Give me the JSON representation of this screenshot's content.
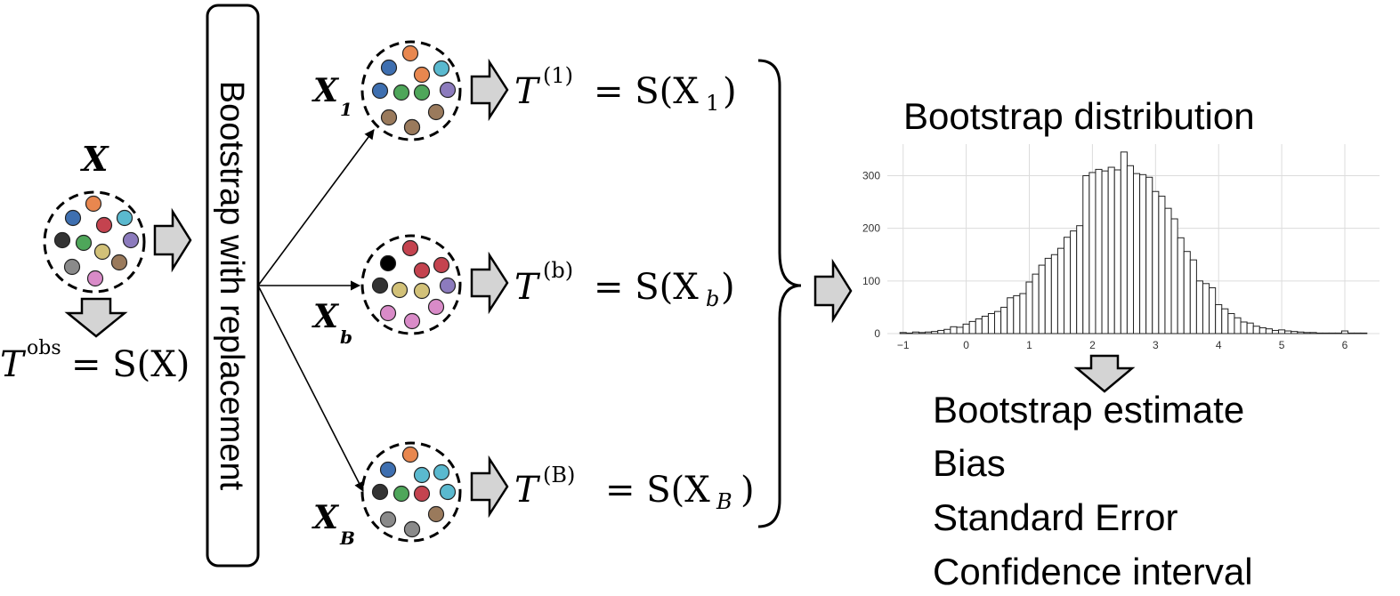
{
  "original": {
    "label": "X",
    "dots": [
      "#e8874f",
      "#3e6fb0",
      "#c4434f",
      "#5ab9cf",
      "#333333",
      "#4ea65a",
      "#d2c178",
      "#8c7bbd",
      "#8a8a8a",
      "#9a7a5c",
      "#d98bc8"
    ],
    "statistic": {
      "base": "T",
      "sup": "obs",
      "rhs": "= S(X)"
    }
  },
  "process_label": "Bootstrap with replacement",
  "resamples": [
    {
      "label": "X",
      "label_sub": "1",
      "dots": [
        "#e8874f",
        "#3e6fb0",
        "#e8874f",
        "#5ab9cf",
        "#3e6fb0",
        "#4ea65a",
        "#4ea65a",
        "#8c7bbd",
        "#9a7a5c",
        "#4ea65a",
        "#9a7a5c",
        "#9a7a5c"
      ],
      "statistic": {
        "base": "T",
        "sup": "(1)",
        "eq": "= S(X",
        "sub": "1",
        "close": ")"
      }
    },
    {
      "label": "X",
      "label_sub": "b",
      "dots": [
        "#c4434f",
        "#000000",
        "#c4434f",
        "#c4434f",
        "#333333",
        "#d2c178",
        "#d2c178",
        "#8c7bbd",
        "#d98bc8",
        "#d98bc8",
        "#d98bc8"
      ],
      "statistic": {
        "base": "T",
        "sup": "(b)",
        "eq": "= S(X",
        "sub": "b",
        "close": ")"
      }
    },
    {
      "label": "X",
      "label_sub": "B",
      "dots": [
        "#e8874f",
        "#3e6fb0",
        "#5ab9cf",
        "#5ab9cf",
        "#333333",
        "#4ea65a",
        "#c4434f",
        "#5ab9cf",
        "#8a8a8a",
        "#8a8a8a",
        "#9a7a5c",
        "#8a8a8a"
      ],
      "statistic": {
        "base": "T",
        "sup": "(B)",
        "eq": "= S(X",
        "sub": "B",
        "close": ")"
      }
    }
  ],
  "distribution_title": "Bootstrap distribution",
  "outputs": [
    "Bootstrap estimate",
    "Bias",
    "Standard Error",
    "Confidence interval"
  ],
  "chart_data": {
    "type": "bar",
    "title": "",
    "xlabel": "",
    "ylabel": "",
    "xlim": [
      -1.25,
      6.55
    ],
    "ylim": [
      0,
      360
    ],
    "xticks": [
      -1,
      0,
      1,
      2,
      3,
      4,
      5,
      6
    ],
    "yticks": [
      0,
      100,
      200,
      300
    ],
    "grid": true,
    "bin_width": 0.1,
    "x": [
      -1.0,
      -0.9,
      -0.8,
      -0.7,
      -0.6,
      -0.5,
      -0.4,
      -0.3,
      -0.2,
      -0.1,
      0.0,
      0.1,
      0.2,
      0.3,
      0.4,
      0.5,
      0.6,
      0.7,
      0.8,
      0.9,
      1.0,
      1.1,
      1.2,
      1.3,
      1.4,
      1.5,
      1.6,
      1.7,
      1.8,
      1.9,
      2.0,
      2.1,
      2.2,
      2.3,
      2.4,
      2.5,
      2.6,
      2.7,
      2.8,
      2.9,
      3.0,
      3.1,
      3.2,
      3.3,
      3.4,
      3.5,
      3.6,
      3.7,
      3.8,
      3.9,
      4.0,
      4.1,
      4.2,
      4.3,
      4.4,
      4.5,
      4.6,
      4.7,
      4.8,
      4.9,
      5.0,
      5.1,
      5.2,
      5.3,
      5.4,
      5.5,
      5.6,
      5.7,
      5.8,
      5.9,
      6.0,
      6.1,
      6.2,
      6.3
    ],
    "values": [
      2,
      1,
      3,
      2,
      3,
      4,
      6,
      8,
      13,
      12,
      18,
      23,
      28,
      33,
      38,
      42,
      50,
      68,
      72,
      76,
      98,
      113,
      130,
      143,
      150,
      162,
      183,
      195,
      205,
      300,
      306,
      312,
      309,
      316,
      311,
      345,
      319,
      304,
      302,
      297,
      270,
      261,
      238,
      218,
      182,
      156,
      140,
      100,
      95,
      87,
      55,
      47,
      38,
      30,
      22,
      20,
      14,
      11,
      9,
      6,
      7,
      5,
      4,
      3,
      2,
      2,
      1,
      1,
      1,
      1,
      5,
      1,
      1,
      1
    ]
  }
}
